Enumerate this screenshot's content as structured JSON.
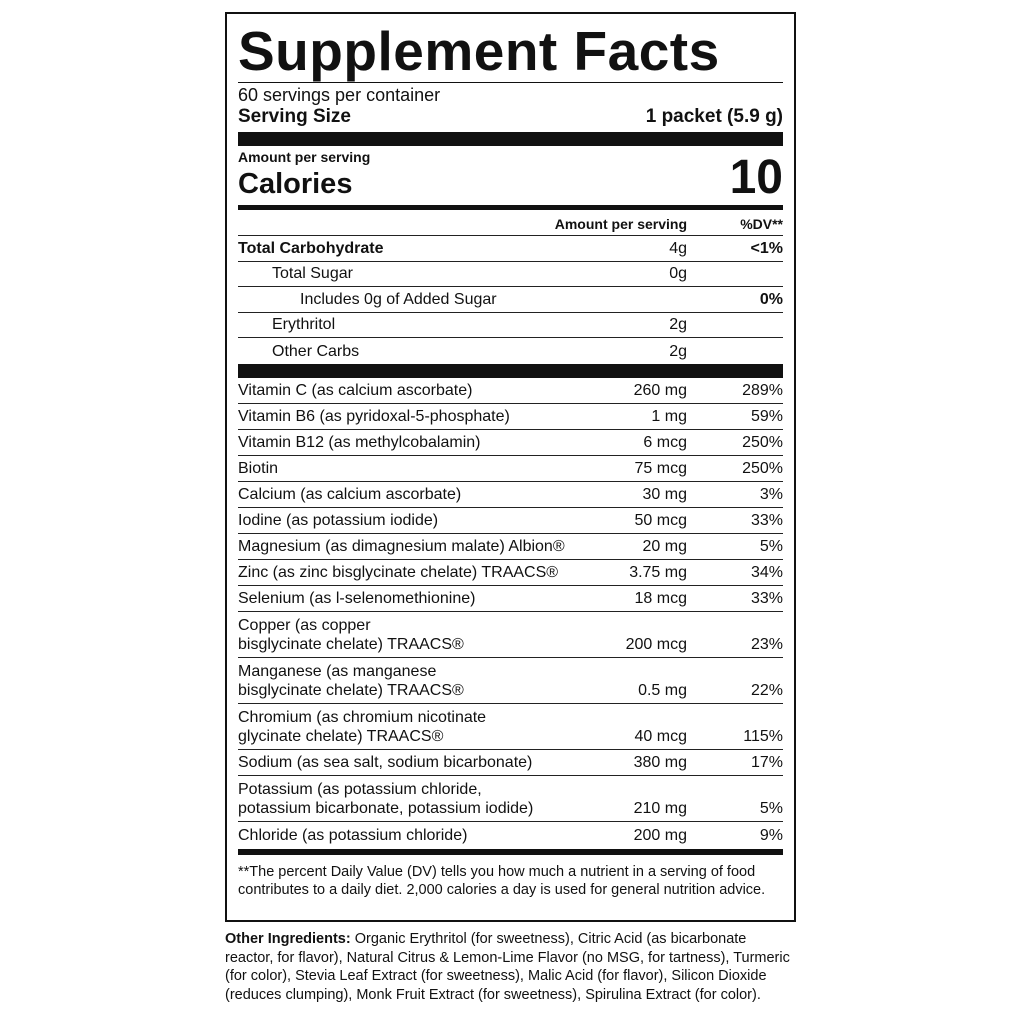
{
  "title": "Supplement Facts",
  "servings_per_container": "60 servings per container",
  "serving_size": {
    "label": "Serving Size",
    "value": "1 packet (5.9 g)"
  },
  "amount_per_serving": "Amount per serving",
  "calories": {
    "label": "Calories",
    "value": "10"
  },
  "table_header": {
    "amount": "Amount per serving",
    "dv": "%DV**"
  },
  "carbs": [
    {
      "name": "Total Carbohydrate",
      "amount": "4g",
      "dv": "<1%"
    },
    {
      "name": "Total Sugar",
      "amount": "0g",
      "dv": ""
    },
    {
      "name": "Includes 0g of Added Sugar",
      "amount": "",
      "dv": "0%"
    },
    {
      "name": "Erythritol",
      "amount": "2g",
      "dv": ""
    },
    {
      "name": "Other Carbs",
      "amount": "2g",
      "dv": ""
    }
  ],
  "nutrients": [
    {
      "name": "Vitamin C (as calcium ascorbate)",
      "amount": "260 mg",
      "dv": "289%"
    },
    {
      "name": "Vitamin B6 (as pyridoxal-5-phosphate)",
      "amount": "1 mg",
      "dv": "59%"
    },
    {
      "name": "Vitamin B12 (as methylcobalamin)",
      "amount": "6 mcg",
      "dv": "250%"
    },
    {
      "name": "Biotin",
      "amount": "75 mcg",
      "dv": "250%"
    },
    {
      "name": "Calcium (as calcium ascorbate)",
      "amount": "30 mg",
      "dv": "3%"
    },
    {
      "name": "Iodine (as potassium iodide)",
      "amount": "50 mcg",
      "dv": "33%"
    },
    {
      "name": "Magnesium (as dimagnesium malate) Albion®",
      "amount": "20 mg",
      "dv": "5%"
    },
    {
      "name": "Zinc (as zinc bisglycinate chelate) TRAACS®",
      "amount": "3.75 mg",
      "dv": "34%"
    },
    {
      "name": "Selenium (as l-selenomethionine)",
      "amount": "18 mcg",
      "dv": "33%"
    },
    {
      "name": "Copper (as copper",
      "name2": "bisglycinate chelate) TRAACS®",
      "amount": "200 mcg",
      "dv": "23%"
    },
    {
      "name": "Manganese (as manganese",
      "name2": "bisglycinate chelate) TRAACS®",
      "amount": "0.5 mg",
      "dv": "22%"
    },
    {
      "name": "Chromium (as chromium nicotinate",
      "name2": "glycinate chelate) TRAACS®",
      "amount": "40 mcg",
      "dv": "115%"
    },
    {
      "name": "Sodium (as sea salt, sodium bicarbonate)",
      "amount": "380 mg",
      "dv": "17%"
    },
    {
      "name": "Potassium (as potassium chloride,",
      "name2": "potassium bicarbonate, potassium iodide)",
      "amount": "210 mg",
      "dv": "5%"
    },
    {
      "name": "Chloride (as potassium chloride)",
      "amount": "200 mg",
      "dv": "9%"
    }
  ],
  "footnote": "**The percent Daily Value (DV) tells you how much a nutrient in a serving of food contributes to a daily diet. 2,000 calories a day is used for general nutrition advice.",
  "other_ingredients": {
    "label": "Other Ingredients:",
    "text": "Organic Erythritol (for sweetness), Citric Acid (as bicarbonate reactor, for flavor), Natural Citrus & Lemon-Lime Flavor (no MSG, for tartness), Turmeric (for color), Stevia Leaf Extract (for sweetness), Malic Acid (for flavor), Silicon Dioxide (reduces clumping), Monk Fruit Extract (for sweetness), Spirulina Extract (for color)."
  }
}
